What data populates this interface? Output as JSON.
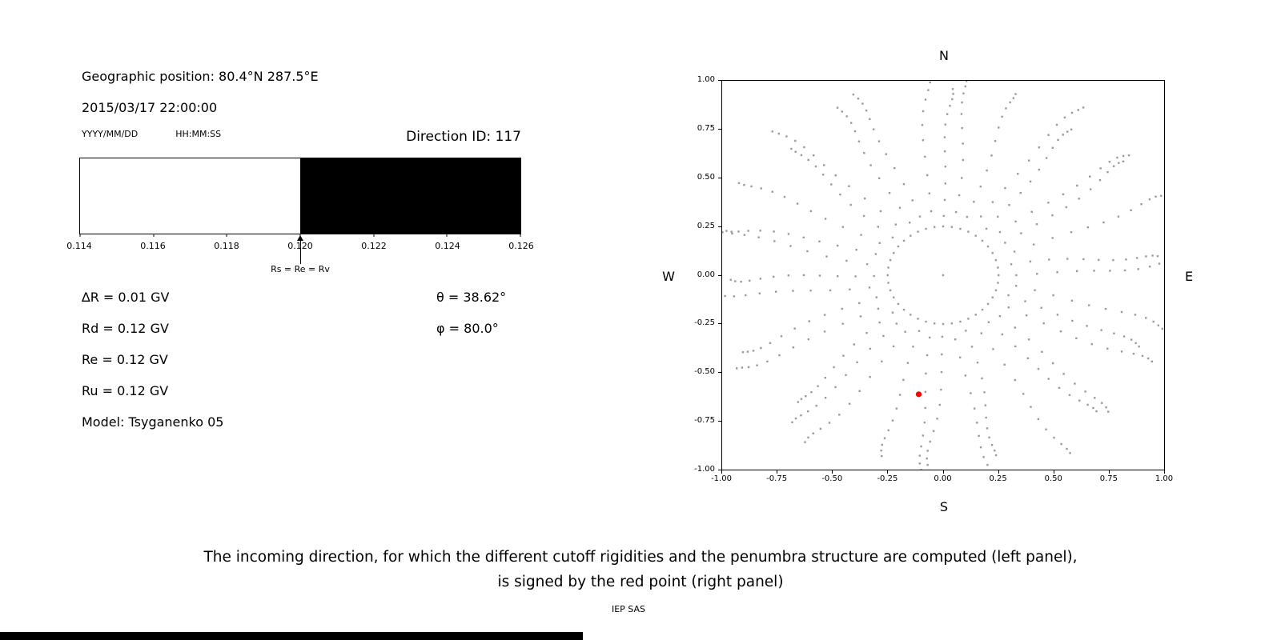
{
  "header": {
    "geo_position": "Geographic position: 80.4°N 287.5°E",
    "datetime": "2015/03/17 22:00:00",
    "date_format": "YYYY/MM/DD",
    "time_format": "HH:MM:SS",
    "direction_id": "Direction ID: 117"
  },
  "params": {
    "left": [
      "∆R = 0.01 GV",
      "Rd = 0.12 GV",
      "Re = 0.12 GV",
      "Ru = 0.12 GV",
      "Model: Tsyganenko 05"
    ],
    "right": [
      "θ  = 38.62°",
      "φ = 80.0°"
    ]
  },
  "caption": {
    "line1": "The incoming direction, for which the different cutoff rigidities and the penumbra structure are computed (left panel),",
    "line2": "is signed by the red point (right panel)",
    "credit": "IEP SAS"
  },
  "chart_data": [
    {
      "name": "penumbra-structure",
      "type": "bar",
      "xlim": [
        0.114,
        0.126
      ],
      "x_ticks": [
        "0.114",
        "0.116",
        "0.118",
        "0.120",
        "0.122",
        "0.124",
        "0.126"
      ],
      "filled_region": {
        "from": 0.12,
        "to": 0.126,
        "color": "#000000"
      },
      "arrow": {
        "x": 0.12,
        "label": "Rs = Re = Rv"
      },
      "grid": false
    },
    {
      "name": "asymptotic-directions",
      "type": "scatter",
      "xlim": [
        -1.0,
        1.0
      ],
      "ylim": [
        -1.0,
        1.0
      ],
      "x_ticks": [
        "-1.00",
        "-0.75",
        "-0.50",
        "-0.25",
        "0.00",
        "0.25",
        "0.50",
        "0.75",
        "1.00"
      ],
      "y_ticks": [
        "1.00",
        "0.75",
        "0.50",
        "0.25",
        "0.00",
        "-0.25",
        "-0.50",
        "-0.75",
        "-1.00"
      ],
      "compass": {
        "top": "N",
        "bottom": "S",
        "left": "W",
        "right": "E"
      },
      "point_color": "#9a9a9a",
      "center_point": {
        "x": 0.0,
        "y": 0.0
      },
      "ring": {
        "radius": 0.25,
        "count": 40
      },
      "spokes": {
        "count": 36,
        "start_angle_deg": 0,
        "step_deg": 10,
        "radii": [
          0.33,
          0.42,
          0.51,
          0.6,
          0.68,
          0.755,
          0.825,
          0.885,
          0.935,
          0.975,
          1.005,
          1.03
        ],
        "curvature_deg_per_unit": [
          5,
          -7,
          3,
          8,
          -5,
          4,
          -8,
          2,
          7,
          -3,
          -9,
          5,
          -2,
          8,
          -6,
          3,
          9,
          -5,
          2,
          -7,
          6,
          -3,
          8,
          -2,
          -8,
          5,
          7,
          -6,
          3,
          -9,
          2,
          6,
          -5,
          7,
          -3,
          -7
        ],
        "length_scale": [
          1.0,
          0.94,
          1.03,
          0.97,
          1.01,
          0.92,
          1.04,
          0.96,
          1.0,
          0.93,
          1.02,
          0.98,
          0.95,
          1.03,
          0.91,
          1.0,
          0.97,
          1.04,
          0.93,
          1.01,
          0.96,
          1.02,
          0.9,
          0.99,
          1.03,
          0.94,
          1.0,
          0.97,
          1.02,
          0.92,
          1.04,
          0.95,
          0.99,
          1.01,
          0.93,
          1.0
        ]
      },
      "red_point": {
        "x": -0.11,
        "y": -0.61,
        "color": "#ff0000"
      },
      "grid": false,
      "legend": false
    }
  ]
}
